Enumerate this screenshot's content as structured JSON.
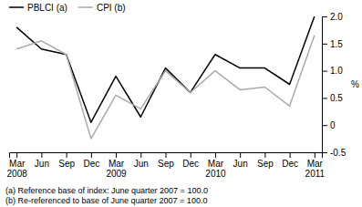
{
  "chart_data": {
    "type": "line",
    "categories": [
      "Mar\n2008",
      "Jun",
      "Sep",
      "Dec",
      "Mar\n2009",
      "Jun",
      "Sep",
      "Dec",
      "Mar\n2010",
      "Jun",
      "Sep",
      "Dec",
      "Mar\n2011"
    ],
    "series": [
      {
        "name": "PBLCI (a)",
        "color": "#000000",
        "values": [
          1.8,
          1.4,
          1.3,
          0.05,
          0.9,
          0.15,
          1.05,
          0.6,
          1.3,
          1.05,
          1.05,
          0.75,
          2.0
        ]
      },
      {
        "name": "CPI (b)",
        "color": "#aaaaaa",
        "values": [
          1.4,
          1.55,
          1.3,
          -0.25,
          0.55,
          0.3,
          1.0,
          0.6,
          1.0,
          0.65,
          0.7,
          0.35,
          1.65
        ]
      }
    ],
    "y_label": "%",
    "ylim": [
      -0.5,
      2.0
    ],
    "yticks": [
      -0.5,
      0,
      0.5,
      {
        "value": 1.0,
        "label": "1.0"
      },
      1.5,
      {
        "value": 2.0,
        "label": "2.0"
      }
    ],
    "annotations": [
      "(a) Reference base of index: June quarter 2007 = 100.0",
      "(b) Re-referenced to base of June quarter 2007 = 100.0"
    ],
    "legend": "upper left",
    "grid": false
  }
}
